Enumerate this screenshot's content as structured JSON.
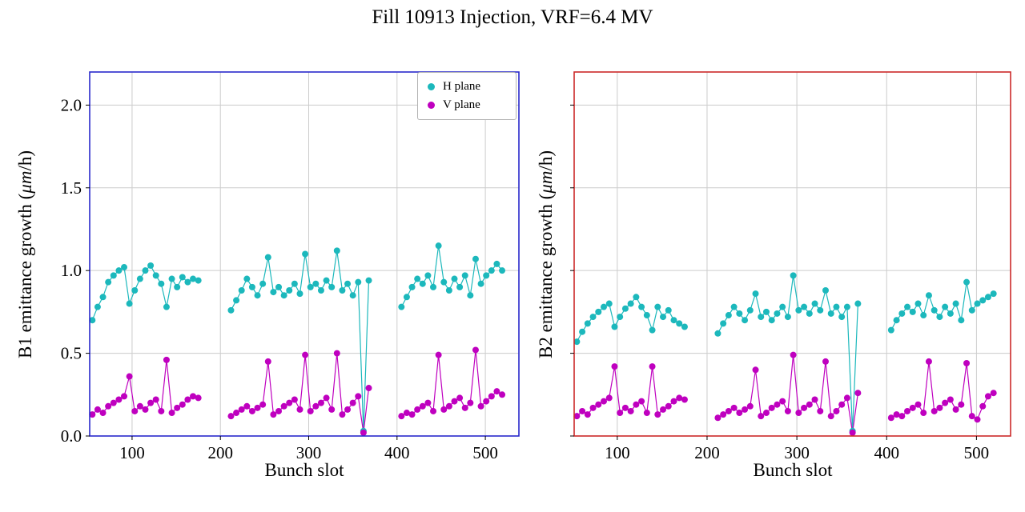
{
  "page_title": "Fill 10913 Injection, VRF=6.4 MV",
  "colors": {
    "h_plane": "#1cb8bc",
    "v_plane": "#bf00bf",
    "b1_spine": "#2a2acc",
    "b2_spine": "#cc2a2a",
    "grid": "#cccccc"
  },
  "legend": {
    "items": [
      {
        "label": "H plane",
        "color": "#1cb8bc"
      },
      {
        "label": "V plane",
        "color": "#bf00bf"
      }
    ]
  },
  "chart_data": [
    {
      "type": "scatter",
      "beam": "B1",
      "xlabel": "Bunch slot",
      "ylabel_prefix": "B1 emittance growth (",
      "ylabel_italic": "μm",
      "ylabel_suffix": "/h)",
      "xlim": [
        52,
        538
      ],
      "ylim": [
        0,
        2.2
      ],
      "xticks": [
        100,
        200,
        300,
        400,
        500
      ],
      "yticks": [
        0,
        0.5,
        1.0,
        1.5,
        2.0
      ],
      "grid": true,
      "spine_color": "#2a2acc",
      "x_trains": [
        [
          55,
          61,
          67,
          73,
          79,
          85,
          91,
          97,
          103,
          109,
          115,
          121,
          127,
          133,
          139,
          145,
          151,
          157,
          163,
          169,
          175
        ],
        [
          212,
          218,
          224,
          230,
          236,
          242,
          248,
          254,
          260,
          266,
          272,
          278,
          284,
          290,
          296,
          302,
          308,
          314,
          320,
          326,
          332,
          338,
          344,
          350,
          356,
          362,
          368
        ],
        [
          405,
          411,
          417,
          423,
          429,
          435,
          441,
          447,
          453,
          459,
          465,
          471,
          477,
          483,
          489,
          495,
          501,
          507,
          513,
          519
        ]
      ],
      "series": [
        {
          "name": "H plane",
          "color": "#1cb8bc",
          "y_trains": [
            [
              0.7,
              0.78,
              0.84,
              0.93,
              0.97,
              1.0,
              1.02,
              0.8,
              0.88,
              0.95,
              1.0,
              1.03,
              0.97,
              0.92,
              0.78,
              0.95,
              0.9,
              0.96,
              0.93,
              0.95,
              0.94
            ],
            [
              0.76,
              0.82,
              0.88,
              0.95,
              0.9,
              0.85,
              0.92,
              1.08,
              0.87,
              0.9,
              0.85,
              0.88,
              0.92,
              0.86,
              1.1,
              0.9,
              0.92,
              0.88,
              0.94,
              0.9,
              1.12,
              0.88,
              0.92,
              0.85,
              0.93,
              0.03,
              0.94
            ],
            [
              0.78,
              0.84,
              0.9,
              0.95,
              0.92,
              0.97,
              0.9,
              1.15,
              0.93,
              0.88,
              0.95,
              0.9,
              0.97,
              0.85,
              1.07,
              0.92,
              0.97,
              1.0,
              1.04,
              1.0
            ]
          ]
        },
        {
          "name": "V plane",
          "color": "#bf00bf",
          "y_trains": [
            [
              0.13,
              0.16,
              0.14,
              0.18,
              0.2,
              0.22,
              0.24,
              0.36,
              0.15,
              0.18,
              0.16,
              0.2,
              0.22,
              0.15,
              0.46,
              0.14,
              0.17,
              0.19,
              0.22,
              0.24,
              0.23
            ],
            [
              0.12,
              0.14,
              0.16,
              0.18,
              0.15,
              0.17,
              0.19,
              0.45,
              0.13,
              0.15,
              0.18,
              0.2,
              0.22,
              0.16,
              0.49,
              0.15,
              0.18,
              0.2,
              0.23,
              0.16,
              0.5,
              0.13,
              0.16,
              0.2,
              0.24,
              0.02,
              0.29
            ],
            [
              0.12,
              0.14,
              0.13,
              0.16,
              0.18,
              0.2,
              0.15,
              0.49,
              0.16,
              0.18,
              0.21,
              0.23,
              0.17,
              0.2,
              0.52,
              0.18,
              0.21,
              0.24,
              0.27,
              0.25
            ]
          ]
        }
      ]
    },
    {
      "type": "scatter",
      "beam": "B2",
      "xlabel": "Bunch slot",
      "ylabel_prefix": "B2 emittance growth (",
      "ylabel_italic": "μm",
      "ylabel_suffix": "/h)",
      "xlim": [
        52,
        538
      ],
      "ylim": [
        0,
        2.2
      ],
      "xticks": [
        100,
        200,
        300,
        400,
        500
      ],
      "yticks": [
        0,
        0.5,
        1.0,
        1.5,
        2.0
      ],
      "grid": true,
      "spine_color": "#cc2a2a",
      "x_trains": [
        [
          55,
          61,
          67,
          73,
          79,
          85,
          91,
          97,
          103,
          109,
          115,
          121,
          127,
          133,
          139,
          145,
          151,
          157,
          163,
          169,
          175
        ],
        [
          212,
          218,
          224,
          230,
          236,
          242,
          248,
          254,
          260,
          266,
          272,
          278,
          284,
          290,
          296,
          302,
          308,
          314,
          320,
          326,
          332,
          338,
          344,
          350,
          356,
          362,
          368
        ],
        [
          405,
          411,
          417,
          423,
          429,
          435,
          441,
          447,
          453,
          459,
          465,
          471,
          477,
          483,
          489,
          495,
          501,
          507,
          513,
          519
        ]
      ],
      "series": [
        {
          "name": "H plane",
          "color": "#1cb8bc",
          "y_trains": [
            [
              0.57,
              0.63,
              0.68,
              0.72,
              0.75,
              0.78,
              0.8,
              0.66,
              0.72,
              0.77,
              0.8,
              0.84,
              0.78,
              0.73,
              0.64,
              0.78,
              0.72,
              0.76,
              0.7,
              0.68,
              0.66
            ],
            [
              0.62,
              0.68,
              0.73,
              0.78,
              0.74,
              0.7,
              0.76,
              0.86,
              0.72,
              0.75,
              0.7,
              0.74,
              0.78,
              0.72,
              0.97,
              0.76,
              0.78,
              0.74,
              0.8,
              0.76,
              0.88,
              0.74,
              0.78,
              0.72,
              0.78,
              0.03,
              0.8
            ],
            [
              0.64,
              0.7,
              0.74,
              0.78,
              0.75,
              0.8,
              0.73,
              0.85,
              0.76,
              0.72,
              0.78,
              0.74,
              0.8,
              0.7,
              0.93,
              0.76,
              0.8,
              0.82,
              0.84,
              0.86
            ]
          ]
        },
        {
          "name": "V plane",
          "color": "#bf00bf",
          "y_trains": [
            [
              0.12,
              0.15,
              0.13,
              0.17,
              0.19,
              0.21,
              0.23,
              0.42,
              0.14,
              0.17,
              0.15,
              0.19,
              0.21,
              0.14,
              0.42,
              0.13,
              0.16,
              0.18,
              0.21,
              0.23,
              0.22
            ],
            [
              0.11,
              0.13,
              0.15,
              0.17,
              0.14,
              0.16,
              0.18,
              0.4,
              0.12,
              0.14,
              0.17,
              0.19,
              0.21,
              0.15,
              0.49,
              0.14,
              0.17,
              0.19,
              0.22,
              0.15,
              0.45,
              0.12,
              0.15,
              0.19,
              0.23,
              0.02,
              0.26
            ],
            [
              0.11,
              0.13,
              0.12,
              0.15,
              0.17,
              0.19,
              0.14,
              0.45,
              0.15,
              0.17,
              0.2,
              0.22,
              0.16,
              0.19,
              0.44,
              0.12,
              0.1,
              0.18,
              0.24,
              0.26
            ]
          ]
        }
      ]
    }
  ]
}
